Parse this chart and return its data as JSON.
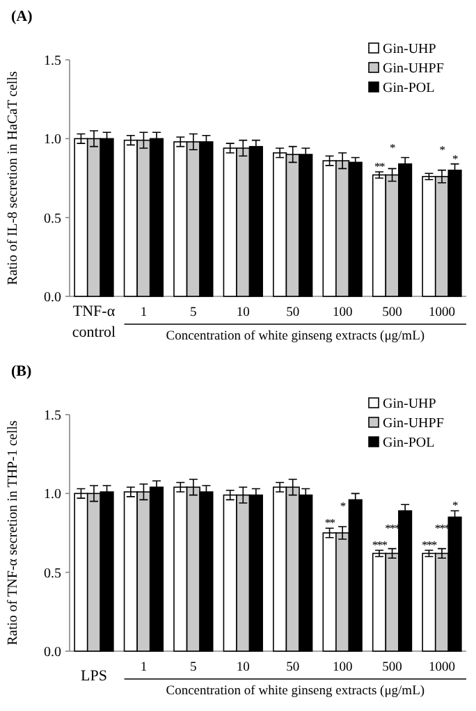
{
  "chart_data": [
    {
      "type": "bar",
      "title": "(A)",
      "ylabel": "Ratio of IL-8 secretion in HaCaT cells",
      "xlabel": "Concentration of white ginseng extracts (μg/mL)",
      "categories": [
        "TNF-α control",
        "1",
        "5",
        "10",
        "50",
        "100",
        "500",
        "1000"
      ],
      "ylim": [
        0,
        1.5
      ],
      "yticks": [
        {
          "value": 0,
          "label": "0.0"
        },
        {
          "value": 0.5,
          "label": "0.5"
        },
        {
          "value": 1,
          "label": "1.0"
        },
        {
          "value": 1.5,
          "label": "1.5"
        }
      ],
      "legend": "top right",
      "series": [
        {
          "name": "Gin-UHP",
          "color": "#ffffff",
          "values": [
            1.0,
            0.99,
            0.98,
            0.94,
            0.91,
            0.86,
            0.77,
            0.76
          ],
          "errors": [
            0.03,
            0.03,
            0.03,
            0.03,
            0.03,
            0.03,
            0.02,
            0.02
          ],
          "value_labels": [
            null,
            null,
            null,
            null,
            null,
            null,
            "**",
            null
          ]
        },
        {
          "name": "Gin-UHPF",
          "color": "#c8c8c8",
          "values": [
            1.0,
            0.99,
            0.98,
            0.94,
            0.9,
            0.86,
            0.77,
            0.76
          ],
          "errors": [
            0.05,
            0.05,
            0.05,
            0.05,
            0.05,
            0.05,
            0.04,
            0.04
          ],
          "value_labels": [
            null,
            null,
            null,
            null,
            null,
            null,
            "*",
            "*"
          ]
        },
        {
          "name": "Gin-POL",
          "color": "#000000",
          "values": [
            1.0,
            1.0,
            0.98,
            0.95,
            0.9,
            0.85,
            0.84,
            0.8
          ],
          "errors": [
            0.04,
            0.04,
            0.04,
            0.04,
            0.04,
            0.03,
            0.04,
            0.04
          ],
          "value_labels": [
            null,
            null,
            null,
            null,
            null,
            null,
            null,
            "*"
          ]
        }
      ]
    },
    {
      "type": "bar",
      "title": "(B)",
      "ylabel": "Ratio of TNF-α secretion in THP-1 cells",
      "xlabel": "Concentration of white ginseng extracts (μg/mL)",
      "categories": [
        "LPS",
        "1",
        "5",
        "10",
        "50",
        "100",
        "500",
        "1000"
      ],
      "ylim": [
        0,
        1.5
      ],
      "yticks": [
        {
          "value": 0,
          "label": "0.0"
        },
        {
          "value": 0.5,
          "label": "0.5"
        },
        {
          "value": 1,
          "label": "1.0"
        },
        {
          "value": 1.5,
          "label": "1.5"
        }
      ],
      "legend": "top right",
      "series": [
        {
          "name": "Gin-UHP",
          "color": "#ffffff",
          "values": [
            1.0,
            1.01,
            1.04,
            0.99,
            1.04,
            0.75,
            0.62,
            0.62
          ],
          "errors": [
            0.03,
            0.03,
            0.03,
            0.03,
            0.03,
            0.03,
            0.02,
            0.02
          ],
          "value_labels": [
            null,
            null,
            null,
            null,
            null,
            "**",
            "***",
            "***"
          ]
        },
        {
          "name": "Gin-UHPF",
          "color": "#c8c8c8",
          "values": [
            1.0,
            1.01,
            1.04,
            0.99,
            1.04,
            0.75,
            0.62,
            0.62
          ],
          "errors": [
            0.05,
            0.05,
            0.05,
            0.05,
            0.05,
            0.04,
            0.03,
            0.03
          ],
          "value_labels": [
            null,
            null,
            null,
            null,
            null,
            "*",
            "***",
            "***"
          ]
        },
        {
          "name": "Gin-POL",
          "color": "#000000",
          "values": [
            1.01,
            1.04,
            1.01,
            0.99,
            0.99,
            0.96,
            0.89,
            0.85
          ],
          "errors": [
            0.04,
            0.04,
            0.04,
            0.04,
            0.04,
            0.04,
            0.04,
            0.04
          ],
          "value_labels": [
            null,
            null,
            null,
            null,
            null,
            null,
            null,
            "*"
          ]
        }
      ]
    }
  ]
}
